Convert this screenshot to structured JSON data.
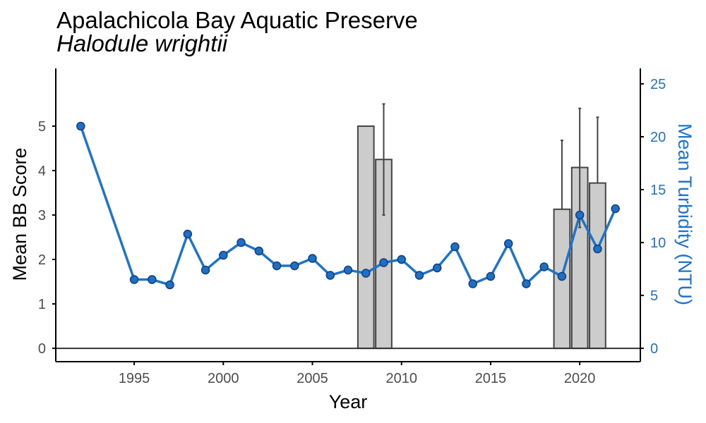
{
  "chart_data": {
    "type": "bar+line",
    "title": "Apalachicola Bay Aquatic Preserve",
    "subtitle": "Halodule wrightii",
    "xlabel": "Year",
    "ylabel": "Mean BB Score",
    "y2label": "Mean Turbidity (NTU)",
    "xlim": [
      1990.6,
      2023.4
    ],
    "ylim": [
      -0.3,
      6.3
    ],
    "y2lim": [
      -1.26,
      26.46
    ],
    "xticks": [
      "1995",
      "2000",
      "2005",
      "2010",
      "2015",
      "2020"
    ],
    "yticks": [
      "0",
      "1",
      "2",
      "3",
      "4",
      "5"
    ],
    "y2ticks": [
      "0",
      "5",
      "10",
      "15",
      "20",
      "25"
    ],
    "grid": false,
    "legend": "none",
    "bars": {
      "name": "Mean BB Score",
      "x": [
        2008,
        2009,
        2019,
        2020,
        2021
      ],
      "values": [
        5.0,
        4.25,
        3.13,
        4.07,
        3.72
      ],
      "error_high": [
        null,
        5.5,
        4.68,
        5.4,
        5.2
      ],
      "error_low": [
        null,
        3.0,
        null,
        2.72,
        null
      ]
    },
    "line": {
      "name": "Mean Turbidity (NTU)",
      "x": [
        1992,
        1995,
        1996,
        1997,
        1998,
        1999,
        2000,
        2001,
        2002,
        2003,
        2004,
        2005,
        2006,
        2007,
        2008,
        2009,
        2010,
        2011,
        2012,
        2013,
        2014,
        2015,
        2016,
        2017,
        2018,
        2019,
        2020,
        2021,
        2022
      ],
      "values": [
        21.0,
        6.5,
        6.5,
        6.0,
        10.8,
        7.4,
        8.8,
        10.0,
        9.2,
        7.8,
        7.8,
        8.5,
        6.9,
        7.4,
        7.1,
        8.1,
        8.4,
        6.9,
        7.6,
        9.6,
        6.1,
        6.8,
        9.9,
        6.1,
        7.7,
        6.8,
        12.6,
        9.4,
        13.2
      ]
    },
    "colors": {
      "bar_fill": "#cccccc",
      "bar_stroke": "#444444",
      "line": "#1f73c8",
      "marker_fill": "#1f6fc5",
      "marker_stroke": "#0e3f80",
      "axis": "#000000",
      "tick_text": "#4d4d4d"
    }
  }
}
